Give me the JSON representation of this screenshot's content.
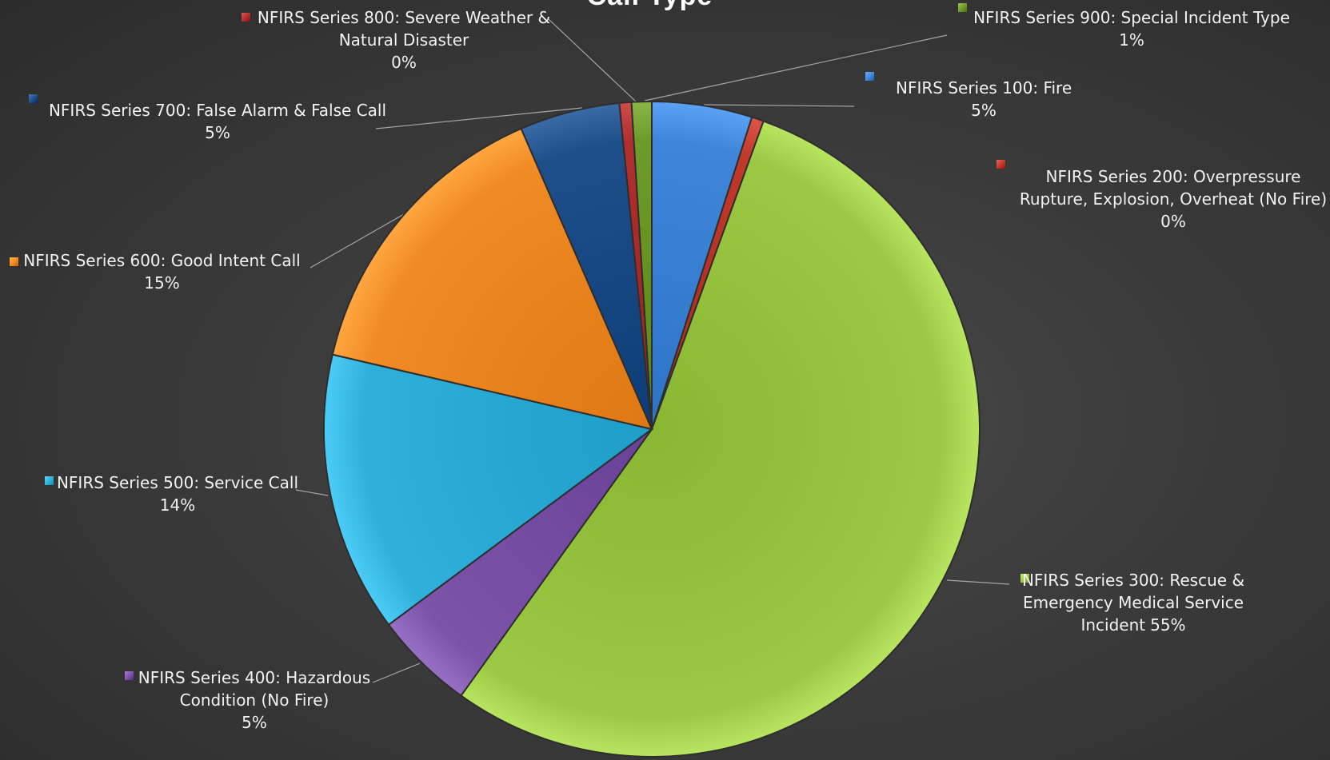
{
  "chart_data": {
    "type": "pie",
    "title": "Call Type",
    "slices": [
      {
        "name": "NFIRS Series 100: Fire",
        "name_lines": [
          "NFIRS Series 100: Fire"
        ],
        "value": 5,
        "label": "5%",
        "color": "#3f86d8"
      },
      {
        "name": "NFIRS Series 200: Overpressure Rupture, Explosion, Overheat (No Fire)",
        "name_lines": [
          "NFIRS Series 200: Overpressure",
          "Rupture, Explosion, Overheat (No Fire)"
        ],
        "value": 0,
        "label": "0%",
        "color": "#c0392b"
      },
      {
        "name": "NFIRS Series 300: Rescue & Emergency Medical Service Incident",
        "name_lines": [
          "NFIRS Series 300: Rescue &",
          "Emergency Medical Service",
          "Incident"
        ],
        "value": 55,
        "label": "55%",
        "color": "#9bc943"
      },
      {
        "name": "NFIRS Series 400: Hazardous Condition (No Fire)",
        "name_lines": [
          "NFIRS Series 400: Hazardous",
          "Condition (No Fire)"
        ],
        "value": 5,
        "label": "5%",
        "color": "#7b53a8"
      },
      {
        "name": "NFIRS Series 500: Service Call",
        "name_lines": [
          "NFIRS Series 500: Service Call"
        ],
        "value": 14,
        "label": "14%",
        "color": "#2fb0da"
      },
      {
        "name": "NFIRS Series 600: Good Intent Call",
        "name_lines": [
          "NFIRS Series 600: Good Intent Call"
        ],
        "value": 15,
        "label": "15%",
        "color": "#f08a24"
      },
      {
        "name": "NFIRS Series 700: False Alarm & False Call",
        "name_lines": [
          "NFIRS Series 700: False Alarm & False Call"
        ],
        "value": 5,
        "label": "5%",
        "color": "#1f4f8a"
      },
      {
        "name": "NFIRS Series 800: Severe Weather & Natural Disaster",
        "name_lines": [
          "NFIRS Series 800: Severe Weather &",
          "Natural Disaster"
        ],
        "value": 0,
        "label": "0%",
        "color": "#b03030"
      },
      {
        "name": "NFIRS Series 900: Special Incident Type",
        "name_lines": [
          "NFIRS Series 900: Special Incident Type"
        ],
        "value": 1,
        "label": "1%",
        "color": "#6e9a2a"
      }
    ]
  }
}
